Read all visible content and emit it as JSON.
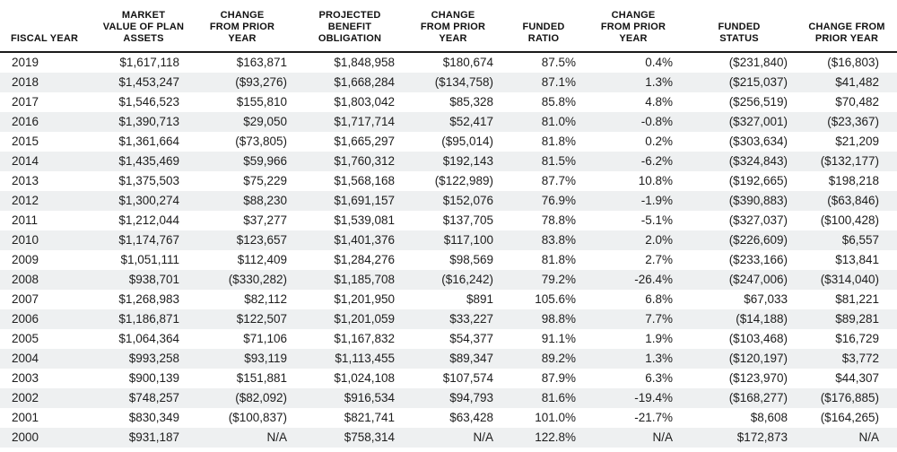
{
  "styles": {
    "stripe_color": "#eef0f1",
    "text_color": "#1d1d1d",
    "header_rule_color": "#1a1a1a"
  },
  "chart_data": {
    "type": "table",
    "title": "",
    "columns": [
      {
        "key": "fiscal-year",
        "label": "FISCAL YEAR"
      },
      {
        "key": "market-value",
        "label": "MARKET\nVALUE OF PLAN\nASSETS"
      },
      {
        "key": "mv-change",
        "label": "CHANGE\nFROM PRIOR\nYEAR"
      },
      {
        "key": "projected-obligation",
        "label": "PROJECTED\nBENEFIT\nOBLIGATION"
      },
      {
        "key": "pbo-change",
        "label": "CHANGE\nFROM PRIOR\nYEAR"
      },
      {
        "key": "funded-ratio",
        "label": "FUNDED\nRATIO"
      },
      {
        "key": "ratio-change",
        "label": "CHANGE\nFROM PRIOR\nYEAR"
      },
      {
        "key": "funded-status",
        "label": "FUNDED\nSTATUS"
      },
      {
        "key": "status-change",
        "label": "CHANGE FROM\nPRIOR YEAR"
      }
    ],
    "rows": [
      [
        "2019",
        "$1,617,118",
        "$163,871",
        "$1,848,958",
        "$180,674",
        "87.5%",
        "0.4%",
        "($231,840)",
        "($16,803)"
      ],
      [
        "2018",
        "$1,453,247",
        "($93,276)",
        "$1,668,284",
        "($134,758)",
        "87.1%",
        "1.3%",
        "($215,037)",
        "$41,482"
      ],
      [
        "2017",
        "$1,546,523",
        "$155,810",
        "$1,803,042",
        "$85,328",
        "85.8%",
        "4.8%",
        "($256,519)",
        "$70,482"
      ],
      [
        "2016",
        "$1,390,713",
        "$29,050",
        "$1,717,714",
        "$52,417",
        "81.0%",
        "-0.8%",
        "($327,001)",
        "($23,367)"
      ],
      [
        "2015",
        "$1,361,664",
        "($73,805)",
        "$1,665,297",
        "($95,014)",
        "81.8%",
        "0.2%",
        "($303,634)",
        "$21,209"
      ],
      [
        "2014",
        "$1,435,469",
        "$59,966",
        "$1,760,312",
        "$192,143",
        "81.5%",
        "-6.2%",
        "($324,843)",
        "($132,177)"
      ],
      [
        "2013",
        "$1,375,503",
        "$75,229",
        "$1,568,168",
        "($122,989)",
        "87.7%",
        "10.8%",
        "($192,665)",
        "$198,218"
      ],
      [
        "2012",
        "$1,300,274",
        "$88,230",
        "$1,691,157",
        "$152,076",
        "76.9%",
        "-1.9%",
        "($390,883)",
        "($63,846)"
      ],
      [
        "2011",
        "$1,212,044",
        "$37,277",
        "$1,539,081",
        "$137,705",
        "78.8%",
        "-5.1%",
        "($327,037)",
        "($100,428)"
      ],
      [
        "2010",
        "$1,174,767",
        "$123,657",
        "$1,401,376",
        "$117,100",
        "83.8%",
        "2.0%",
        "($226,609)",
        "$6,557"
      ],
      [
        "2009",
        "$1,051,111",
        "$112,409",
        "$1,284,276",
        "$98,569",
        "81.8%",
        "2.7%",
        "($233,166)",
        "$13,841"
      ],
      [
        "2008",
        "$938,701",
        "($330,282)",
        "$1,185,708",
        "($16,242)",
        "79.2%",
        "-26.4%",
        "($247,006)",
        "($314,040)"
      ],
      [
        "2007",
        "$1,268,983",
        "$82,112",
        "$1,201,950",
        "$891",
        "105.6%",
        "6.8%",
        "$67,033",
        "$81,221"
      ],
      [
        "2006",
        "$1,186,871",
        "$122,507",
        "$1,201,059",
        "$33,227",
        "98.8%",
        "7.7%",
        "($14,188)",
        "$89,281"
      ],
      [
        "2005",
        "$1,064,364",
        "$71,106",
        "$1,167,832",
        "$54,377",
        "91.1%",
        "1.9%",
        "($103,468)",
        "$16,729"
      ],
      [
        "2004",
        "$993,258",
        "$93,119",
        "$1,113,455",
        "$89,347",
        "89.2%",
        "1.3%",
        "($120,197)",
        "$3,772"
      ],
      [
        "2003",
        "$900,139",
        "$151,881",
        "$1,024,108",
        "$107,574",
        "87.9%",
        "6.3%",
        "($123,970)",
        "$44,307"
      ],
      [
        "2002",
        "$748,257",
        "($82,092)",
        "$916,534",
        "$94,793",
        "81.6%",
        "-19.4%",
        "($168,277)",
        "($176,885)"
      ],
      [
        "2001",
        "$830,349",
        "($100,837)",
        "$821,741",
        "$63,428",
        "101.0%",
        "-21.7%",
        "$8,608",
        "($164,265)"
      ],
      [
        "2000",
        "$931,187",
        "N/A",
        "$758,314",
        "N/A",
        "122.8%",
        "N/A",
        "$172,873",
        "N/A"
      ]
    ]
  }
}
